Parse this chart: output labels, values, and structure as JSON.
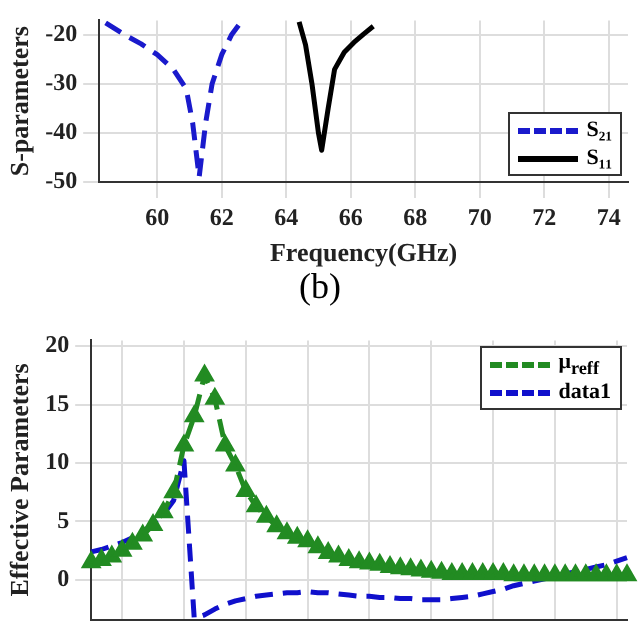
{
  "chart_data": [
    {
      "type": "line",
      "xlabel": "Frequency(GHz)",
      "ylabel": "S-parameters",
      "annotations": [
        "(b)"
      ],
      "xlim": [
        58.2,
        74.6
      ],
      "xticks": [
        60,
        62,
        64,
        66,
        68,
        70,
        72,
        74
      ],
      "ylim": [
        -50,
        -17
      ],
      "yticks": [
        -20,
        -30,
        -40,
        -50
      ],
      "grid": true,
      "legend": "bottom right",
      "series": [
        {
          "name": "S₂₁",
          "color": "#1a1acc",
          "line_style": "dashed",
          "x": [
            58.4,
            59.0,
            59.5,
            60.0,
            60.5,
            60.9,
            61.1,
            61.3,
            61.5,
            61.7,
            62.0,
            62.3,
            62.6
          ],
          "values": [
            -17.5,
            -20,
            -21.8,
            -24,
            -27,
            -31,
            -38,
            -49,
            -38,
            -30,
            -24,
            -20,
            -17.3
          ]
        },
        {
          "name": "S₁₁",
          "color": "#000000",
          "line_style": "solid",
          "x": [
            64.4,
            64.6,
            64.8,
            65.0,
            65.1,
            65.3,
            65.5,
            65.8,
            66.1,
            66.4,
            66.7
          ],
          "values": [
            -17.3,
            -22,
            -30,
            -40,
            -43.5,
            -35,
            -27,
            -23.5,
            -21.5,
            -19.8,
            -18.2
          ]
        }
      ]
    },
    {
      "type": "line",
      "ylabel": "Effective Parameters",
      "categories": [
        null,
        null,
        null,
        null,
        null,
        null,
        null,
        null,
        null,
        null,
        null,
        null,
        null,
        null,
        null,
        null,
        null,
        null,
        null,
        null,
        null,
        null,
        null,
        null,
        null,
        null,
        null,
        null,
        null,
        null,
        null,
        null,
        null,
        null,
        null,
        null,
        null,
        null,
        null,
        null,
        null,
        null,
        null,
        null,
        null,
        null,
        null,
        null,
        null,
        null,
        null,
        null,
        null
      ],
      "ylim": [
        -3.4,
        20.5
      ],
      "yticks": [
        0,
        5,
        10,
        15,
        20
      ],
      "grid": true,
      "legend": "top right",
      "tick_labels": "y",
      "series": [
        {
          "name": "μ$_{reff}$",
          "color": "#228b22",
          "line_style": "dashed",
          "marker": "triangle",
          "values": [
            1.5,
            1.7,
            2.0,
            2.5,
            3.1,
            3.8,
            4.7,
            5.8,
            7.5,
            11.5,
            14,
            17.5,
            15.5,
            11.5,
            9.8,
            7.6,
            6.3,
            5.4,
            4.6,
            4.0,
            3.6,
            3.3,
            2.8,
            2.3,
            2.0,
            1.7,
            1.5,
            1.4,
            1.3,
            1.1,
            1.0,
            0.9,
            0.8,
            0.7,
            0.6,
            0.5,
            0.5,
            0.5,
            0.5,
            0.5,
            0.5,
            0.4,
            0.4,
            0.4,
            0.4,
            0.4,
            0.4,
            0.4,
            0.4,
            0.4,
            0.4,
            0.4,
            0.4
          ]
        },
        {
          "name": "data1",
          "color": "#1010cc",
          "line_style": "dashed",
          "marker": "none",
          "values": [
            2.4,
            2.6,
            2.9,
            3.2,
            3.6,
            4.1,
            4.8,
            5.6,
            6.8,
            10.2,
            -3.3,
            -3.0,
            -2.5,
            -2.1,
            -1.8,
            -1.6,
            -1.4,
            -1.3,
            -1.2,
            -1.1,
            -1.1,
            -1.0,
            -1.1,
            -1.1,
            -1.2,
            -1.3,
            -1.4,
            -1.4,
            -1.5,
            -1.5,
            -1.6,
            -1.6,
            -1.7,
            -1.7,
            -1.7,
            -1.6,
            -1.5,
            -1.4,
            -1.2,
            -1.0,
            -0.8,
            -0.5,
            -0.3,
            -0.1,
            0.1,
            0.3,
            0.5,
            0.7,
            0.9,
            1.1,
            1.3,
            1.6,
            1.9
          ]
        }
      ]
    }
  ]
}
